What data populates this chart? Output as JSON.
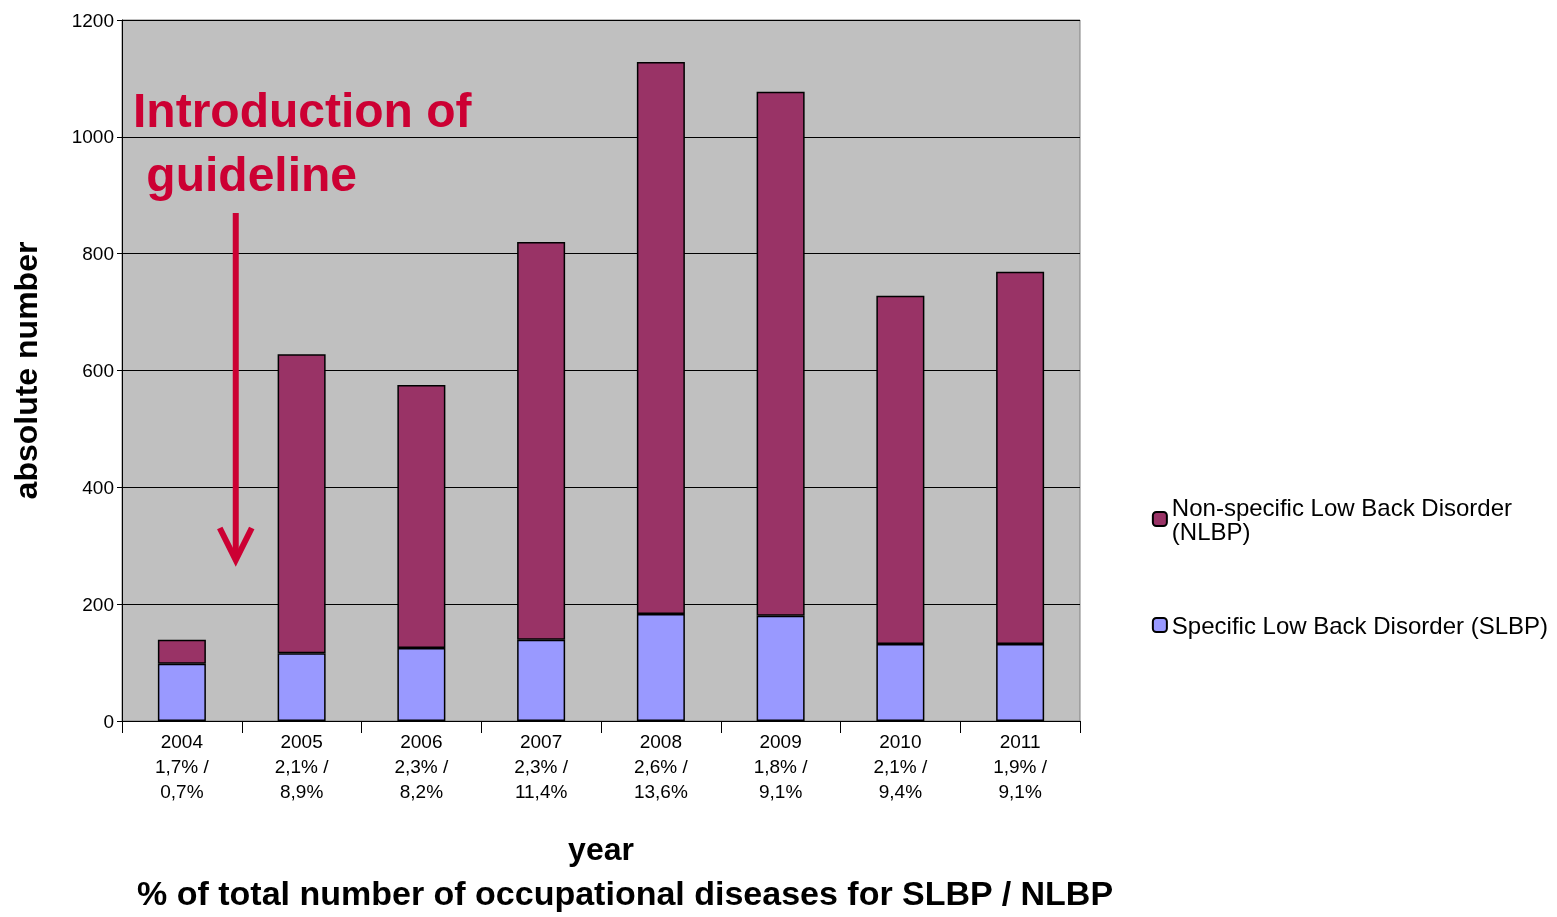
{
  "chart_data": {
    "type": "bar",
    "stacked": true,
    "xlabel": "year",
    "ylabel": "absolute number",
    "categories": [
      "2004\n1,7% /\n0,7%",
      "2005\n2,1% /\n8,9%",
      "2006\n2,3% /\n8,2%",
      "2007\n2,3% /\n11,4%",
      "2008\n2,6% /\n13,6%",
      "2009\n1,8% /\n9,1%",
      "2010\n2,1% /\n9,4%",
      "2011\n1,9% /\n9,1%"
    ],
    "series": [
      {
        "name": "Specific Low Back Disorder (SLBP)",
        "color": "#9999ff",
        "values": [
          98,
          116,
          125,
          139,
          183,
          180,
          132,
          132
        ]
      },
      {
        "name": "Non-specific Low Back Disorder (NLBP)",
        "color": "#993366",
        "values": [
          41,
          512,
          450,
          681,
          945,
          897,
          596,
          637
        ]
      }
    ],
    "ylim": [
      0,
      1200
    ],
    "yticks": [
      0,
      200,
      400,
      600,
      800,
      1000,
      1200
    ],
    "grid": "y",
    "legend": "right",
    "annotations": [
      "Introduction of guideline",
      "% of total number of occupational diseases for SLBP / NLBP"
    ]
  }
}
